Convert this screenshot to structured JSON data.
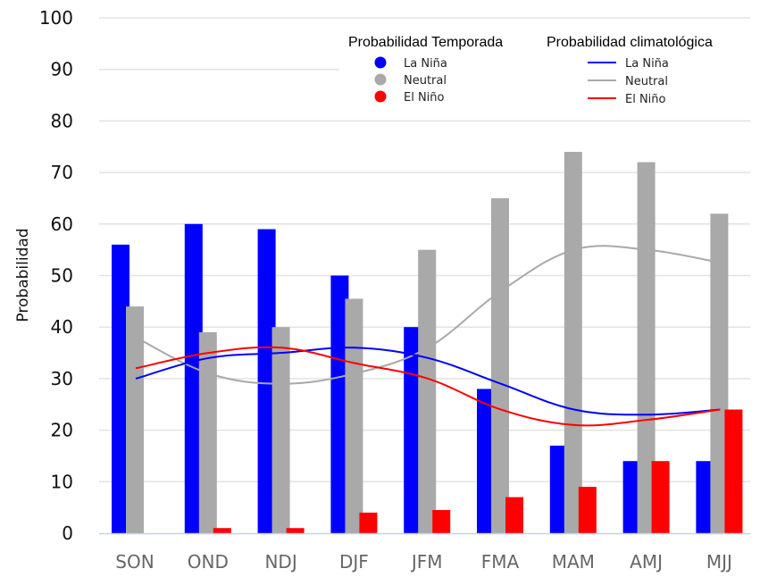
{
  "chart_data": {
    "type": "bar",
    "title": "",
    "xlabel": "",
    "ylabel": "Probabilidad",
    "ylim": [
      0,
      100
    ],
    "yticks": [
      "0",
      "10",
      "20",
      "30",
      "40",
      "50",
      "60",
      "70",
      "80",
      "90",
      "100"
    ],
    "grid": true,
    "categories": [
      "SON",
      "OND",
      "NDJ",
      "DJF",
      "JFM",
      "FMA",
      "MAM",
      "AMJ",
      "MJJ"
    ],
    "series": [
      {
        "name": "La Niña",
        "kind": "bar",
        "color": "#0000ff",
        "values": [
          56,
          60,
          59,
          50,
          40,
          28,
          17,
          14,
          14
        ]
      },
      {
        "name": "Neutral",
        "kind": "bar",
        "color": "#a9a9a9",
        "values": [
          44,
          39,
          40,
          45.5,
          55,
          65,
          74,
          72,
          62
        ]
      },
      {
        "name": "El Niño",
        "kind": "bar",
        "color": "#ff0000",
        "values": [
          0,
          1,
          1,
          4,
          4.5,
          7,
          9,
          14,
          24
        ]
      }
    ],
    "lines": [
      {
        "name": "La Niña",
        "kind": "line",
        "color": "#0000ff",
        "values": [
          30,
          34,
          35,
          36,
          34,
          29,
          24,
          23,
          24
        ]
      },
      {
        "name": "Neutral",
        "kind": "line",
        "color": "#a9a9a9",
        "values": [
          38,
          31,
          29,
          31,
          36,
          47,
          55,
          55,
          52.5
        ]
      },
      {
        "name": "El Niño",
        "kind": "line",
        "color": "#ff0000",
        "values": [
          32,
          35,
          36,
          33,
          30,
          24,
          21,
          22,
          24
        ]
      }
    ],
    "legend": {
      "placement": "top-right",
      "groups": [
        {
          "title": "Probabilidad Temporada",
          "marker": "circle",
          "items": [
            "La Niña",
            "Neutral",
            "El Niño"
          ]
        },
        {
          "title": "Probabilidad climatológica",
          "marker": "line",
          "items": [
            "La Niña",
            "Neutral",
            "El Niño"
          ]
        }
      ]
    }
  }
}
